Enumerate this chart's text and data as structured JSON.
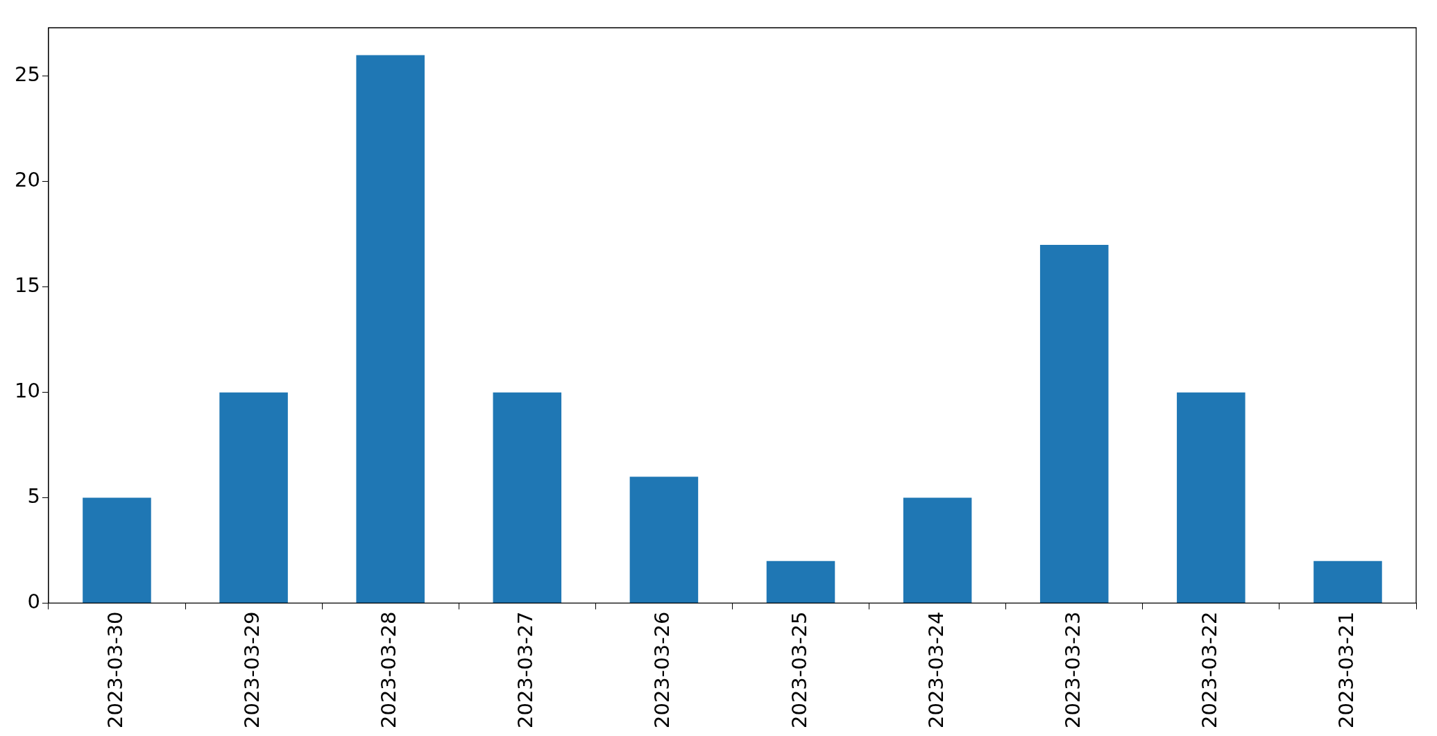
{
  "chart_data": {
    "type": "bar",
    "categories": [
      "2023-03-30",
      "2023-03-29",
      "2023-03-28",
      "2023-03-27",
      "2023-03-26",
      "2023-03-25",
      "2023-03-24",
      "2023-03-23",
      "2023-03-22",
      "2023-03-21"
    ],
    "values": [
      5,
      10,
      26,
      10,
      6,
      2,
      5,
      17,
      10,
      2
    ],
    "color": "#1f77b4",
    "ylim": [
      0,
      27.3
    ],
    "yticks": [
      0,
      5,
      10,
      15,
      20,
      25
    ],
    "grid": false,
    "legend": false
  }
}
